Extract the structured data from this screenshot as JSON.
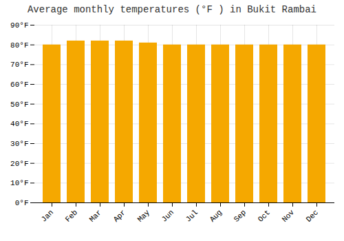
{
  "chart_data": {
    "type": "bar",
    "title": "Average monthly temperatures (°F ) in Bukit Rambai",
    "categories": [
      "Jan",
      "Feb",
      "Mar",
      "Apr",
      "May",
      "Jun",
      "Jul",
      "Aug",
      "Sep",
      "Oct",
      "Nov",
      "Dec"
    ],
    "values": [
      80,
      82,
      82,
      82,
      81,
      80,
      80,
      80,
      80,
      80,
      80,
      80
    ],
    "color": "#F5A800",
    "ylim": [
      0,
      90
    ],
    "yticks": [
      {
        "value": 0,
        "label": "0°F"
      },
      {
        "value": 10,
        "label": "10°F"
      },
      {
        "value": 20,
        "label": "20°F"
      },
      {
        "value": 30,
        "label": "30°F"
      },
      {
        "value": 40,
        "label": "40°F"
      },
      {
        "value": 50,
        "label": "50°F"
      },
      {
        "value": 60,
        "label": "60°F"
      },
      {
        "value": 70,
        "label": "70°F"
      },
      {
        "value": 80,
        "label": "80°F"
      },
      {
        "value": 90,
        "label": "90°F"
      }
    ],
    "grid": true
  }
}
